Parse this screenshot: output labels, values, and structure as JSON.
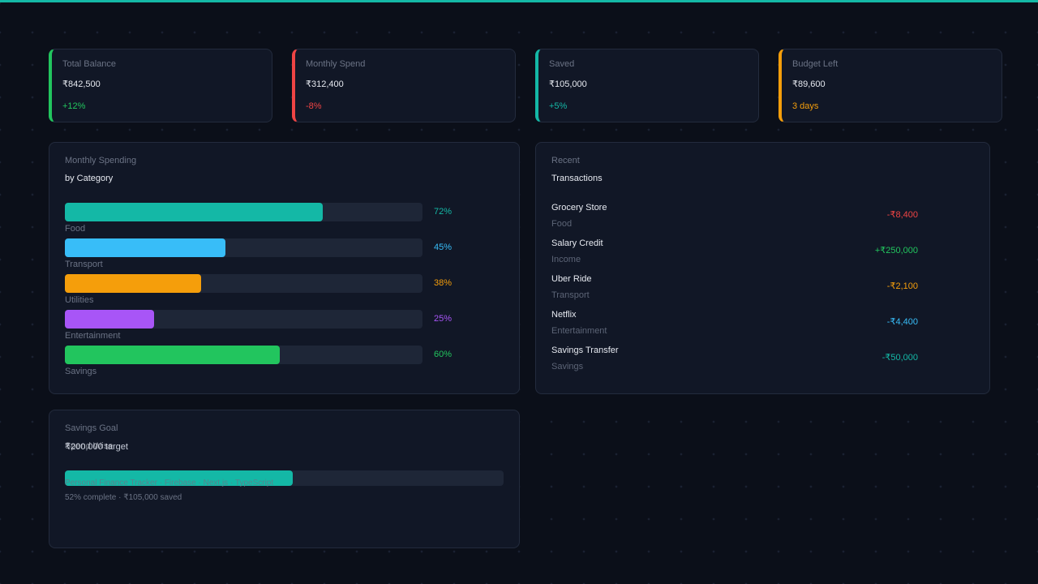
{
  "stats": [
    {
      "label": "Total Balance",
      "value": "₹842,500",
      "delta": "+12%",
      "color": "#22c55e"
    },
    {
      "label": "Monthly Spend",
      "value": "₹312,400",
      "delta": "-8%",
      "color": "#ef4444"
    },
    {
      "label": "Saved",
      "value": "₹105,000",
      "delta": "+5%",
      "color": "#14b8a6"
    },
    {
      "label": "Budget Left",
      "value": "₹89,600",
      "delta": "3 days",
      "color": "#f59e0b"
    }
  ],
  "spending": {
    "label": "Monthly Spending",
    "subtitle": "by Category",
    "items": [
      {
        "name": "Food",
        "pct_label": "72%",
        "value": 72,
        "color": "#14b8a6"
      },
      {
        "name": "Transport",
        "pct_label": "45%",
        "value": 45,
        "color": "#38bdf8"
      },
      {
        "name": "Utilities",
        "pct_label": "38%",
        "value": 38,
        "color": "#f59e0b"
      },
      {
        "name": "Entertainment",
        "pct_label": "25%",
        "value": 25,
        "color": "#a855f7"
      },
      {
        "name": "Savings",
        "pct_label": "60%",
        "value": 60,
        "color": "#22c55e"
      }
    ]
  },
  "recent": {
    "label": "Recent",
    "subtitle": "Transactions",
    "items": [
      {
        "name": "Grocery Store",
        "category": "Food",
        "amount": "-₹8,400",
        "color": "#ef4444"
      },
      {
        "name": "Salary Credit",
        "category": "Income",
        "amount": "+₹250,000",
        "color": "#22c55e"
      },
      {
        "name": "Uber Ride",
        "category": "Transport",
        "amount": "-₹2,100",
        "color": "#f59e0b"
      },
      {
        "name": "Netflix",
        "category": "Entertainment",
        "amount": "-₹4,400",
        "color": "#38bdf8"
      },
      {
        "name": "Savings Transfer",
        "category": "Savings",
        "amount": "-₹50,000",
        "color": "#14b8a6"
      }
    ]
  },
  "goal": {
    "label": "Savings Goal",
    "target_text": "₹200,000 target",
    "overlay_text": "Spend Wise",
    "footer_text": "Personal Finance Tracker · Firebase · Next.js · TypeScript",
    "progress_text": "52% complete · ₹105,000 saved",
    "progress": 0.52,
    "color": "#14b8a6"
  }
}
